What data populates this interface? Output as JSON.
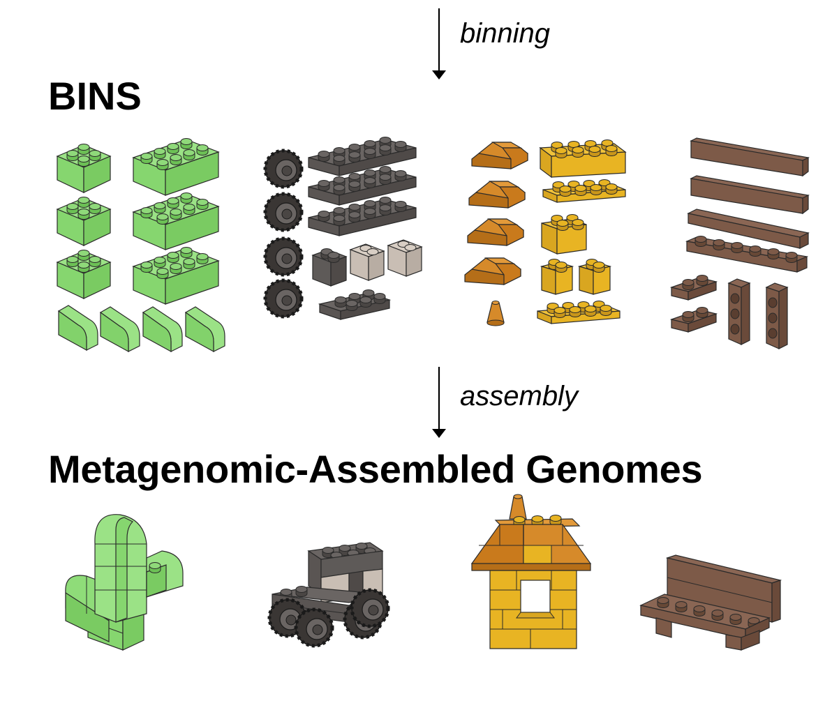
{
  "steps": {
    "binning": "binning",
    "assembly": "assembly"
  },
  "headings": {
    "bins": "BINS",
    "mags": "Metagenomic-Assembled Genomes"
  },
  "colors": {
    "green": "#8fd97a",
    "dark_gray": "#5e5a58",
    "light_gray": "#c9beb4",
    "orange": "#c97a1c",
    "yellow": "#e8b423",
    "brown": "#7d5a48",
    "tire": "#3a3634",
    "outline": "#2a2a2a"
  },
  "bins": [
    {
      "color": "green",
      "pieces": [
        "2x2 brick",
        "2x2 brick",
        "2x2 brick",
        "2x4 brick",
        "2x4 brick",
        "2x4 brick",
        "curved slope",
        "curved slope",
        "curved slope",
        "curved slope"
      ]
    },
    {
      "color": "dark_gray",
      "pieces": [
        "wheel",
        "wheel",
        "wheel",
        "wheel",
        "2x6 plate",
        "2x6 plate",
        "2x6 plate",
        "1x2 brick",
        "1x2 brick (light)",
        "1x2 brick (light)",
        "2x4 plate"
      ]
    },
    {
      "color": "orange_yellow",
      "pieces": [
        "slope",
        "slope",
        "slope",
        "slope",
        "cone",
        "2x4 brick",
        "2x4 plate",
        "2x2 brick",
        "1x2 brick",
        "1x2 brick",
        "2x4 plate"
      ]
    },
    {
      "color": "brown",
      "pieces": [
        "tile",
        "tile",
        "tile",
        "1x6 plate",
        "1x2 plate",
        "1x2 plate",
        "1x3 technic",
        "1x3 technic"
      ]
    }
  ],
  "mags": [
    {
      "color": "green",
      "model": "cactus"
    },
    {
      "color": "dark_gray",
      "model": "truck"
    },
    {
      "color": "orange_yellow",
      "model": "house"
    },
    {
      "color": "brown",
      "model": "bench"
    }
  ]
}
